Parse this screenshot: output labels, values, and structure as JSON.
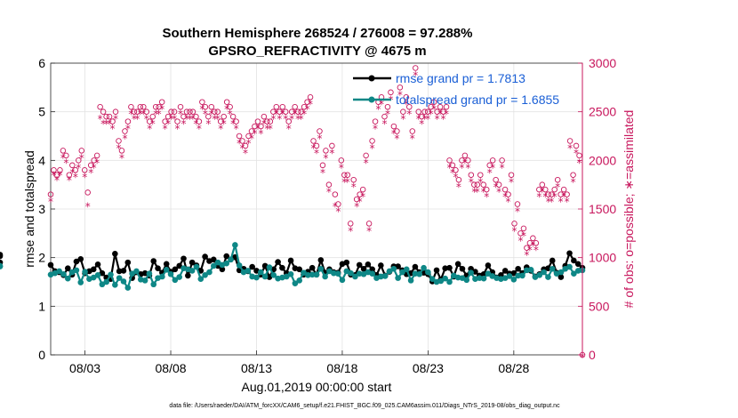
{
  "chart_data": {
    "type": "line",
    "title_line1": "Southern Hemisphere 268524 / 276008 = 97.288%",
    "title_line2": "GPSRO_REFRACTIVITY @ 4675 m",
    "xlabel": "Aug.01,2019 00:00:00 start",
    "ylabel": "rmse and totalspread",
    "y2label": "# of obs: o=possible; ∗=assimilated",
    "footnote": "data file: /Users/raeder/DAI/ATM_forcXX/CAM6_setup/f.e21.FHIST_BGC.f09_025.CAM6assim.011/Diags_NTrS_2019-08/obs_diag_output.nc",
    "legend": [
      "rmse grand pr = 1.7813",
      "totalspread grand pr = 1.6855"
    ],
    "x_range": [
      1,
      32
    ],
    "ylim": [
      0,
      6
    ],
    "y2lim": [
      0,
      3000
    ],
    "yticks": [
      "0",
      "1",
      "2",
      "3",
      "4",
      "5",
      "6"
    ],
    "y2ticks": [
      "0",
      "500",
      "1000",
      "1500",
      "2000",
      "2500",
      "3000"
    ],
    "xticks": [
      {
        "pos": 3,
        "label": "08/03"
      },
      {
        "pos": 8,
        "label": "08/08"
      },
      {
        "pos": 13,
        "label": "08/13"
      },
      {
        "pos": 18,
        "label": "08/18"
      },
      {
        "pos": 23,
        "label": "08/23"
      },
      {
        "pos": 28,
        "label": "08/28"
      }
    ],
    "colors": {
      "rmse": "#000000",
      "totalspread": "#0e8786",
      "obs": "#c8175d",
      "legend_text": "#1a5fd6"
    },
    "day_x": [
      1.0,
      1.25,
      1.5,
      1.75,
      2.0,
      2.25,
      2.5,
      2.75,
      3.0,
      3.25,
      3.5,
      3.75,
      4.0,
      4.25,
      4.5,
      4.75,
      5.0,
      5.25,
      5.5,
      5.75,
      6.0,
      6.25,
      6.5,
      6.75,
      7.0,
      7.25,
      7.5,
      7.75,
      8.0,
      8.25,
      8.5,
      8.75,
      9.0,
      9.25,
      9.5,
      9.75,
      10.0,
      10.25,
      10.5,
      10.75,
      11.0,
      11.25,
      11.5,
      11.75,
      12.0,
      12.25,
      12.5,
      12.75,
      13.0,
      13.25,
      13.5,
      13.75,
      14.0,
      14.25,
      14.5,
      14.75,
      15.0,
      15.25,
      15.5,
      15.75,
      16.0,
      16.25,
      16.5,
      16.75,
      17.0,
      17.25,
      17.5,
      17.75,
      18.0,
      18.25,
      18.5,
      18.75,
      19.0,
      19.25,
      19.5,
      19.75,
      20.0,
      20.25,
      20.5,
      20.75,
      21.0,
      21.25,
      21.5,
      21.75,
      22.0,
      22.25,
      22.5,
      22.75,
      23.0,
      23.25,
      23.5,
      23.75,
      24.0,
      24.25,
      24.5,
      24.75,
      25.0,
      25.25,
      25.5,
      25.75,
      26.0,
      26.25,
      26.5,
      26.75,
      27.0,
      27.25,
      27.5,
      27.75,
      28.0,
      28.25,
      28.5,
      28.75,
      29.0,
      29.25,
      29.5,
      29.75,
      30.0,
      30.25,
      30.5,
      30.75,
      31.0,
      31.25,
      31.5,
      31.75,
      32.0
    ],
    "series": [
      {
        "name": "rmse",
        "values": [
          1.85,
          1.72,
          1.7,
          1.64,
          1.78,
          1.65,
          1.92,
          1.97,
          1.68,
          1.72,
          1.76,
          1.86,
          1.68,
          1.59,
          1.56,
          2.08,
          1.72,
          1.73,
          1.9,
          1.58,
          1.7,
          1.66,
          1.68,
          1.63,
          1.93,
          1.78,
          1.69,
          1.87,
          1.71,
          1.76,
          1.83,
          1.98,
          1.63,
          1.9,
          1.84,
          1.73,
          2.02,
          1.93,
          1.96,
          1.83,
          1.76,
          2.03,
          1.96,
          2.01,
          1.74,
          1.77,
          1.72,
          1.81,
          1.73,
          1.65,
          1.83,
          1.6,
          1.76,
          1.91,
          1.79,
          1.68,
          1.94,
          1.78,
          1.76,
          1.65,
          1.71,
          1.79,
          1.65,
          1.95,
          1.69,
          1.76,
          1.7,
          1.69,
          1.87,
          1.9,
          1.65,
          1.64,
          1.85,
          1.77,
          1.86,
          1.76,
          1.64,
          1.84,
          1.63,
          1.71,
          1.82,
          1.82,
          1.74,
          1.66,
          1.68,
          1.81,
          1.7,
          1.69,
          1.66,
          1.51,
          1.74,
          1.55,
          1.78,
          1.79,
          1.61,
          1.87,
          1.77,
          1.63,
          1.77,
          1.71,
          1.63,
          1.66,
          1.84,
          1.7,
          1.59,
          1.64,
          1.73,
          1.67,
          1.68,
          1.77,
          1.68,
          1.8,
          1.73,
          1.61,
          1.66,
          1.76,
          1.78,
          1.94,
          1.69,
          1.6,
          1.83,
          2.09,
          1.94,
          1.87,
          1.79,
          1.9,
          2.03,
          2.06
        ]
      },
      {
        "name": "totalspread",
        "values": [
          1.65,
          1.68,
          1.72,
          1.66,
          1.57,
          1.7,
          1.74,
          1.49,
          1.71,
          1.56,
          1.59,
          1.64,
          1.45,
          1.5,
          1.65,
          1.44,
          1.58,
          1.51,
          1.38,
          1.67,
          1.72,
          1.55,
          1.53,
          1.67,
          1.45,
          1.58,
          1.61,
          1.75,
          1.66,
          1.54,
          1.6,
          1.78,
          1.76,
          1.73,
          1.81,
          1.56,
          1.64,
          1.7,
          1.83,
          1.9,
          1.85,
          1.88,
          1.96,
          2.26,
          1.84,
          1.7,
          1.73,
          1.61,
          1.59,
          1.7,
          1.61,
          1.8,
          1.64,
          1.57,
          1.59,
          1.61,
          1.66,
          1.47,
          1.53,
          1.69,
          1.64,
          1.65,
          1.65,
          1.77,
          1.61,
          1.72,
          1.68,
          1.67,
          1.54,
          1.72,
          1.68,
          1.61,
          1.67,
          1.66,
          1.7,
          1.67,
          1.58,
          1.61,
          1.62,
          1.72,
          1.77,
          1.58,
          1.7,
          1.76,
          1.53,
          1.67,
          1.66,
          1.79,
          1.7,
          1.56,
          1.5,
          1.52,
          1.57,
          1.5,
          1.63,
          1.59,
          1.58,
          1.54,
          1.69,
          1.56,
          1.58,
          1.57,
          1.67,
          1.62,
          1.58,
          1.56,
          1.58,
          1.62,
          1.55,
          1.63,
          1.63,
          1.74,
          1.75,
          1.6,
          1.64,
          1.7,
          1.6,
          1.77,
          1.67,
          1.7,
          1.77,
          1.81,
          1.67,
          1.73,
          1.74,
          1.82,
          1.82,
          1.83
        ]
      },
      {
        "name": "possible",
        "values": [
          1650,
          1900,
          1850,
          1900,
          2100,
          2050,
          1850,
          1950,
          1900,
          2000,
          2100,
          1900,
          1670,
          1950,
          2000,
          2050,
          2550,
          2500,
          2450,
          2450,
          2400,
          2500,
          2200,
          2100,
          2300,
          2400,
          2550,
          2500,
          2500,
          2550,
          2550,
          2500,
          2400,
          2450,
          2550,
          2550,
          2600,
          2400,
          2450,
          2500,
          2500,
          2400,
          2550,
          2450,
          2500,
          2500,
          2500,
          2450,
          2400,
          2600,
          2550,
          2450,
          2550,
          2500,
          2500,
          2400,
          2450,
          2600,
          2550,
          2450,
          2400,
          2250,
          2200,
          2150,
          2250,
          2300,
          2350,
          2400,
          2350,
          2450,
          2400,
          2400,
          2500,
          2550,
          2500,
          2550,
          2500,
          2400,
          2500,
          2550,
          2500,
          2500,
          2550,
          2600,
          2650,
          2200,
          2150,
          2300,
          1950,
          2100,
          1750,
          2150,
          1650,
          1550,
          2000,
          1850,
          1850,
          1350,
          1800,
          1600,
          1650,
          1700,
          2050,
          1350,
          2200,
          2400,
          2600,
          2650,
          2450,
          2550,
          2700,
          2350,
          2300,
          2750,
          2500,
          2650,
          2550,
          2300,
          2950,
          2500,
          2450,
          2500,
          2500,
          2550,
          2600,
          2500,
          2550,
          2500,
          2550,
          2000,
          1950,
          1900,
          1800,
          2000,
          2050,
          2000,
          1850,
          1750,
          1750,
          1850,
          1750,
          1700,
          1950,
          2000,
          1800,
          1750,
          2000,
          1700,
          1650,
          1850,
          1350,
          1550,
          1250,
          1300,
          1100,
          1150,
          1200,
          1150,
          1700,
          1750,
          1700,
          1650,
          1650,
          1700,
          1800,
          1650,
          1700,
          1650,
          2200,
          1850,
          2150,
          2050,
          0
        ]
      },
      {
        "name": "assimilated",
        "values": [
          1600,
          1870,
          1820,
          1870,
          2050,
          2000,
          1820,
          1900,
          1850,
          1950,
          2050,
          1850,
          1550,
          1900,
          1950,
          2000,
          2450,
          2400,
          2400,
          2400,
          2350,
          2450,
          2150,
          2050,
          2250,
          2350,
          2500,
          2450,
          2450,
          2500,
          2500,
          2450,
          2350,
          2400,
          2500,
          2500,
          2550,
          2350,
          2400,
          2450,
          2450,
          2350,
          2500,
          2400,
          2450,
          2450,
          2450,
          2400,
          2350,
          2550,
          2500,
          2400,
          2500,
          2450,
          2450,
          2350,
          2400,
          2550,
          2500,
          2400,
          2350,
          2200,
          2150,
          2100,
          2200,
          2250,
          2300,
          2350,
          2300,
          2400,
          2350,
          2350,
          2450,
          2500,
          2450,
          2500,
          2450,
          2350,
          2450,
          2500,
          2450,
          2450,
          2500,
          2550,
          2600,
          2150,
          2100,
          2250,
          1900,
          2050,
          1700,
          2100,
          1550,
          1500,
          1950,
          1800,
          1800,
          1300,
          1750,
          1550,
          1600,
          1650,
          2000,
          1300,
          2150,
          2350,
          2550,
          2600,
          2400,
          2500,
          2650,
          2300,
          2250,
          2700,
          2450,
          2600,
          2500,
          2250,
          2900,
          2450,
          2400,
          2450,
          2450,
          2500,
          2550,
          2450,
          2500,
          2450,
          2500,
          1950,
          1900,
          1850,
          1750,
          1950,
          2000,
          1950,
          1800,
          1700,
          1700,
          1800,
          1700,
          1650,
          1900,
          1950,
          1750,
          1700,
          1950,
          1650,
          1600,
          1800,
          1300,
          1500,
          1200,
          1250,
          1050,
          1100,
          1150,
          1100,
          1650,
          1700,
          1650,
          1600,
          1600,
          1650,
          1750,
          1600,
          1650,
          1600,
          2150,
          1800,
          2100,
          2000,
          0
        ]
      }
    ]
  }
}
